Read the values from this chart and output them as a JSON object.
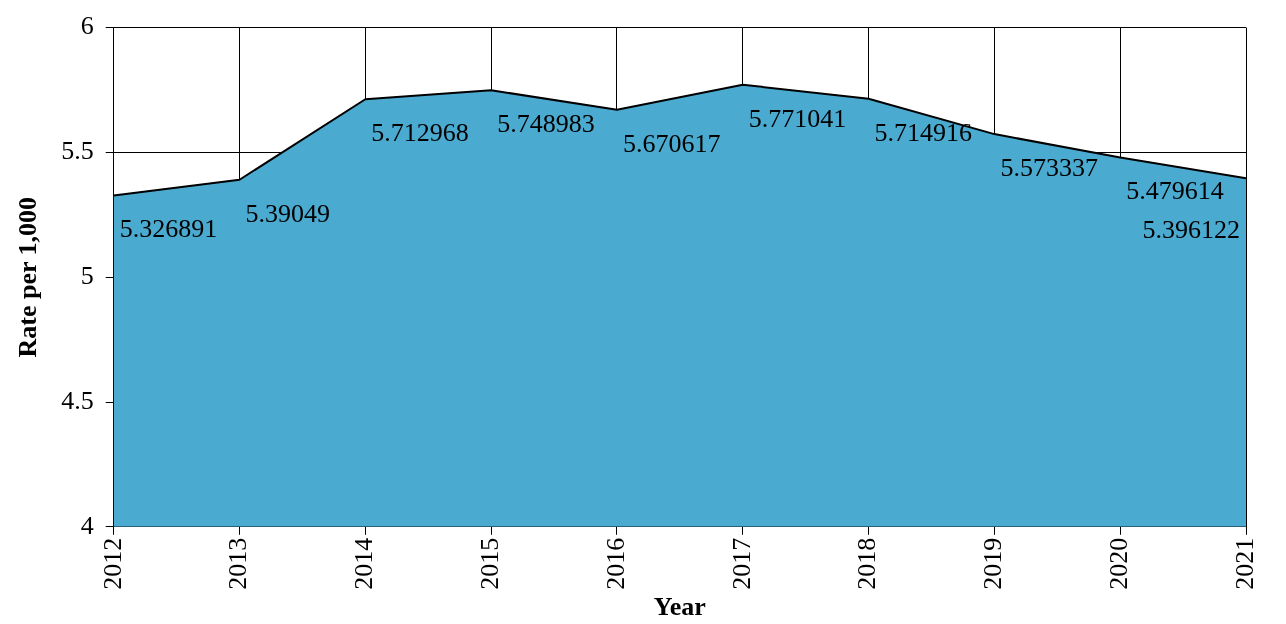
{
  "chart_data": {
    "type": "area",
    "xlabel": "Year",
    "ylabel": "Rate per 1,000",
    "categories": [
      "2012",
      "2013",
      "2014",
      "2015",
      "2016",
      "2017",
      "2018",
      "2019",
      "2020",
      "2021"
    ],
    "values": [
      5.326891,
      5.39049,
      5.712968,
      5.748983,
      5.670617,
      5.771041,
      5.714916,
      5.573337,
      5.479614,
      5.396122
    ],
    "color": "#4aaad0",
    "ylim": [
      4,
      6
    ],
    "yticks": [
      4,
      4.5,
      5,
      5.5,
      6
    ],
    "grid": true,
    "data_labels": true
  }
}
